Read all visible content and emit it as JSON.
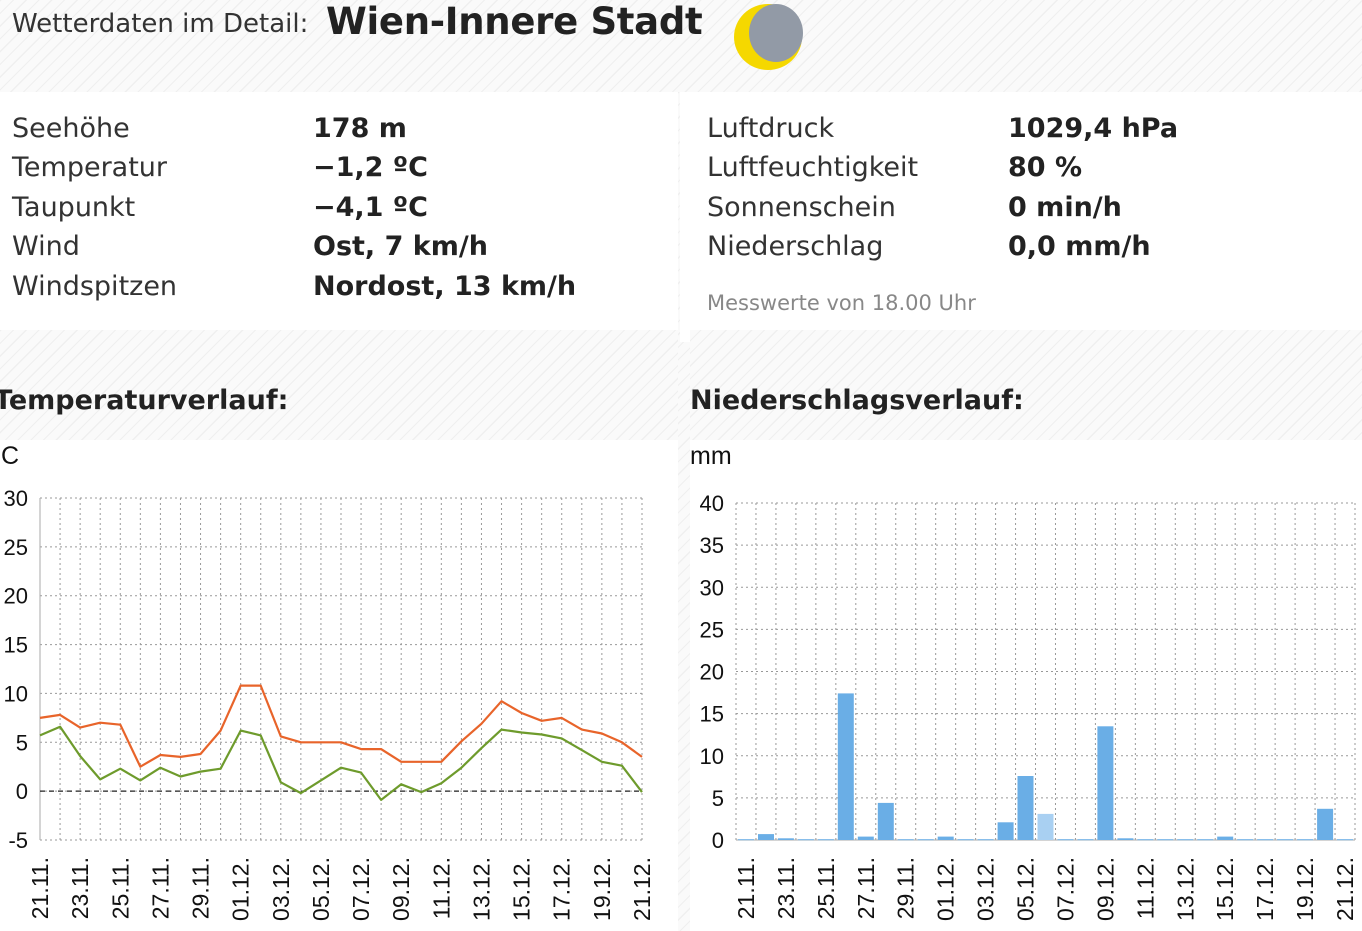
{
  "header": {
    "label": "Wetterdaten im Detail:",
    "location": "Wien-Innere Stadt",
    "icon": "moon-phase-icon"
  },
  "left_measurements": [
    {
      "label": "Seehöhe",
      "value": "178 m"
    },
    {
      "label": "Temperatur",
      "value": "−1,2 ºC"
    },
    {
      "label": "Taupunkt",
      "value": "−4,1 ºC"
    },
    {
      "label": "Wind",
      "value": "Ost, 7 km/h"
    },
    {
      "label": "Windspitzen",
      "value": "Nordost, 13 km/h"
    }
  ],
  "right_measurements": [
    {
      "label": "Luftdruck",
      "value": "1029,4 hPa"
    },
    {
      "label": "Luftfeuchtigkeit",
      "value": "80 %"
    },
    {
      "label": "Sonnenschein",
      "value": "0 min/h"
    },
    {
      "label": "Niederschlag",
      "value": "0,0 mm/h"
    }
  ],
  "measure_note": "Messwerte von 18.00 Uhr",
  "temperature_chart": {
    "section_title": "Temperaturverlauf:",
    "unit": "°C"
  },
  "precip_chart": {
    "section_title": "Niederschlagsverlauf:",
    "unit": "mm"
  },
  "chart_data": [
    {
      "type": "line",
      "title": "Temperaturverlauf:",
      "ylabel": "°C",
      "ylim": [
        -5,
        30
      ],
      "yticks": [
        -5,
        0,
        5,
        10,
        15,
        20,
        25,
        30
      ],
      "xtick_labels": [
        "21.11.",
        "23.11.",
        "25.11.",
        "27.11.",
        "29.11.",
        "01.12.",
        "03.12.",
        "05.12.",
        "07.12.",
        "09.12.",
        "11.12.",
        "13.12.",
        "15.12.",
        "17.12.",
        "19.12.",
        "21.12."
      ],
      "grid": true,
      "zero_line": "dashed",
      "series": [
        {
          "color": "#e8642a",
          "values": [
            7.5,
            7.8,
            6.5,
            7.0,
            6.8,
            2.5,
            3.7,
            3.5,
            3.8,
            6.2,
            10.8,
            10.8,
            5.6,
            5.0,
            5.0,
            5.0,
            4.3,
            4.3,
            3.0,
            3.0,
            3.0,
            5.1,
            6.9,
            9.2,
            8.0,
            7.2,
            7.5,
            6.3,
            5.9,
            5.0,
            3.5
          ]
        },
        {
          "color": "#6e9b2c",
          "values": [
            5.7,
            6.6,
            3.6,
            1.2,
            2.3,
            1.1,
            2.4,
            1.5,
            2.0,
            2.3,
            6.2,
            5.7,
            0.9,
            -0.2,
            1.1,
            2.4,
            1.9,
            -0.9,
            0.7,
            -0.1,
            0.8,
            2.4,
            4.4,
            6.3,
            6.0,
            5.8,
            5.4,
            4.2,
            3.0,
            2.6,
            -0.1
          ]
        }
      ]
    },
    {
      "type": "bar",
      "title": "Niederschlagsverlauf:",
      "ylabel": "mm",
      "ylim": [
        0,
        40
      ],
      "yticks": [
        0,
        5,
        10,
        15,
        20,
        25,
        30,
        35,
        40
      ],
      "xtick_labels": [
        "21.11.",
        "23.11.",
        "25.11.",
        "27.11.",
        "29.11.",
        "01.12.",
        "03.12.",
        "05.12.",
        "07.12.",
        "09.12.",
        "11.12.",
        "13.12.",
        "15.12.",
        "17.12.",
        "19.12.",
        "21.12."
      ],
      "grid": true,
      "bar_color": "#6aaee6",
      "bar_color_light": "#a9d0f2",
      "values": [
        0.1,
        0.7,
        0.2,
        0.1,
        0.1,
        17.4,
        0.4,
        4.4,
        0.1,
        0.1,
        0.4,
        0.1,
        0.1,
        2.1,
        7.6,
        3.1,
        0.1,
        0.1,
        13.5,
        0.2,
        0.1,
        0.1,
        0.1,
        0.1,
        0.4,
        0.1,
        0.1,
        0.1,
        0.1,
        3.7,
        0.1
      ],
      "light_bars": [
        15
      ]
    }
  ]
}
